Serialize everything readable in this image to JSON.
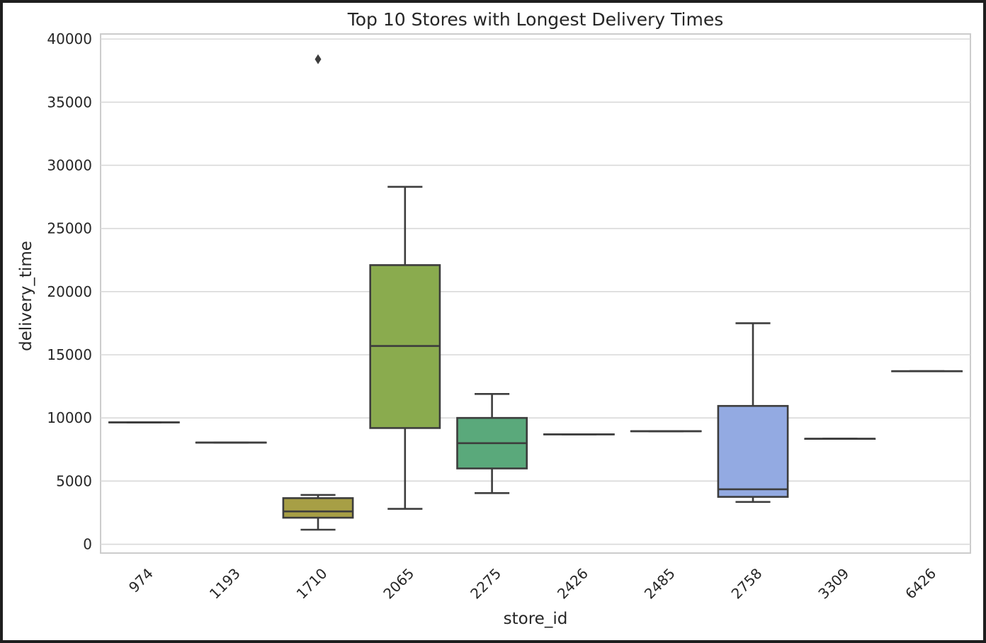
{
  "chart_data": {
    "type": "box",
    "title": "Top 10 Stores with Longest Delivery Times",
    "xlabel": "store_id",
    "ylabel": "delivery_time",
    "ylim": [
      -700,
      40400
    ],
    "yticks": [
      0,
      5000,
      10000,
      15000,
      20000,
      25000,
      30000,
      35000,
      40000
    ],
    "grid": true,
    "categories": [
      "974",
      "1193",
      "1710",
      "2065",
      "2275",
      "2426",
      "2485",
      "2758",
      "3309",
      "6426"
    ],
    "boxes": [
      {
        "min": 9650,
        "q1": 9650,
        "median": 9650,
        "q3": 9650,
        "max": 9650,
        "outliers": [],
        "color": "#4f5ea0"
      },
      {
        "min": 8050,
        "q1": 8050,
        "median": 8050,
        "q3": 8050,
        "max": 8050,
        "outliers": [],
        "color": "#5a6fb0"
      },
      {
        "min": 1150,
        "q1": 2100,
        "median": 2600,
        "q3": 3650,
        "max": 3900,
        "outliers": [
          38400
        ],
        "color": "#a79f45"
      },
      {
        "min": 2800,
        "q1": 9200,
        "median": 15700,
        "q3": 22100,
        "max": 28300,
        "outliers": [],
        "color": "#8aab4e"
      },
      {
        "min": 4050,
        "q1": 6000,
        "median": 8000,
        "q3": 10000,
        "max": 11900,
        "outliers": [],
        "color": "#5aa97b"
      },
      {
        "min": 8700,
        "q1": 8700,
        "median": 8700,
        "q3": 8700,
        "max": 8700,
        "outliers": [],
        "color": "#55a8a0"
      },
      {
        "min": 8950,
        "q1": 8950,
        "median": 8950,
        "q3": 8950,
        "max": 8950,
        "outliers": [],
        "color": "#5b9ec2"
      },
      {
        "min": 3350,
        "q1": 3750,
        "median": 4350,
        "q3": 10950,
        "max": 17500,
        "outliers": [],
        "color": "#93aae2"
      },
      {
        "min": 8350,
        "q1": 8350,
        "median": 8350,
        "q3": 8350,
        "max": 8350,
        "outliers": [],
        "color": "#a39ee0"
      },
      {
        "min": 13700,
        "q1": 13700,
        "median": 13700,
        "q3": 13700,
        "max": 13700,
        "outliers": [],
        "color": "#c89bd6"
      }
    ]
  }
}
